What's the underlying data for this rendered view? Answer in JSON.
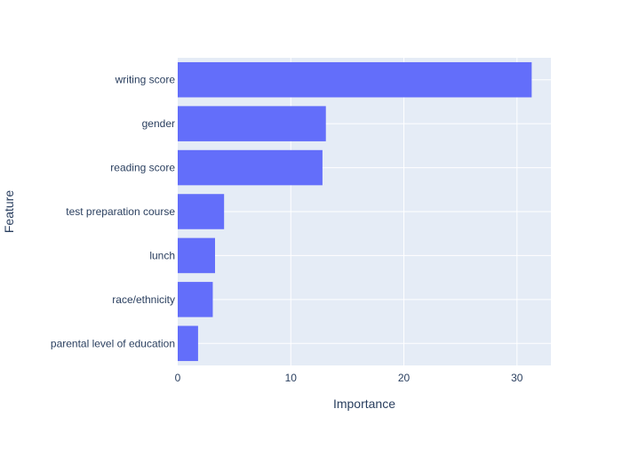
{
  "chart_data": {
    "type": "bar",
    "orientation": "horizontal",
    "categories": [
      "writing score",
      "gender",
      "reading score",
      "test preparation course",
      "lunch",
      "race/ethnicity",
      "parental level of education"
    ],
    "values": [
      31.3,
      13.1,
      12.8,
      4.1,
      3.3,
      3.1,
      1.8
    ],
    "xlabel": "Importance",
    "ylabel": "Feature",
    "xlim": [
      0,
      33
    ],
    "x_ticks": [
      0,
      10,
      20,
      30
    ],
    "x_tick_labels": [
      "0",
      "10",
      "20",
      "30"
    ],
    "grid": true,
    "colors": {
      "bar": "#636efa",
      "plot_background": "#e5ecf6",
      "grid": "#ffffff",
      "text": "#2a3f5f"
    }
  }
}
